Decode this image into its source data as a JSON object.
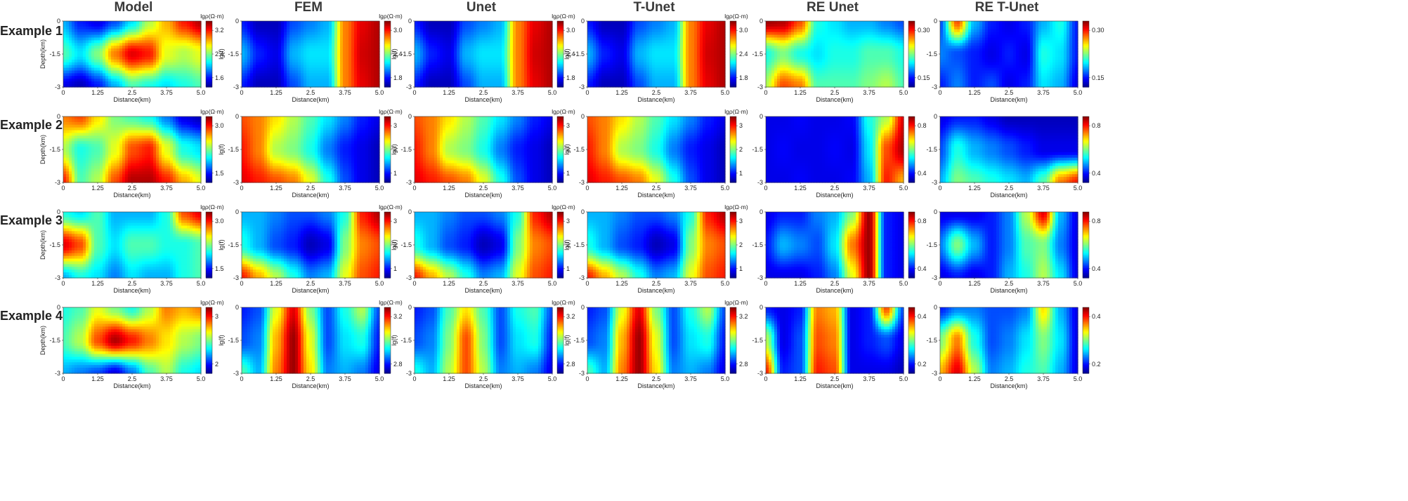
{
  "columns": [
    "Model",
    "FEM",
    "Unet",
    "T-Unet",
    "RE Unet",
    "RE T-Unet"
  ],
  "rows": [
    "Example 1",
    "Example 2",
    "Example 3",
    "Example 4"
  ],
  "x_ticks": [
    "0",
    "1.25",
    "2.5",
    "3.75",
    "5.0"
  ],
  "y_ticks": [
    "0",
    "-1.5",
    "-3"
  ],
  "x_label": "Distance(km)",
  "y_label_model": "Depth(km)",
  "y_label_freq": "lg(f)",
  "colorbar_unit": "lgρ(Ω·m)",
  "colorbar_ticks": {
    "Example 1": {
      "Model": [
        "3.2",
        "2.4",
        "1.6"
      ],
      "FEM": [
        "3.0",
        "2.4",
        "1.8"
      ],
      "Unet": [
        "3.0",
        "2.4",
        "1.8"
      ],
      "T-Unet": [
        "3.0",
        "2.4",
        "1.8"
      ],
      "RE Unet": [
        "0.30",
        "0.15"
      ],
      "RE T-Unet": [
        "0.30",
        "0.15"
      ]
    },
    "Example 2": {
      "Model": [
        "3.0",
        "1.5"
      ],
      "FEM": [
        "3",
        "2",
        "1"
      ],
      "Unet": [
        "3",
        "2",
        "1"
      ],
      "T-Unet": [
        "3",
        "2",
        "1"
      ],
      "RE Unet": [
        "0.8",
        "0.4"
      ],
      "RE T-Unet": [
        "0.8",
        "0.4"
      ]
    },
    "Example 3": {
      "Model": [
        "3.0",
        "1.5"
      ],
      "FEM": [
        "3",
        "2",
        "1"
      ],
      "Unet": [
        "3",
        "2",
        "1"
      ],
      "T-Unet": [
        "3",
        "2",
        "1"
      ],
      "RE Unet": [
        "0.8",
        "0.4"
      ],
      "RE T-Unet": [
        "0.8",
        "0.4"
      ]
    },
    "Example 4": {
      "Model": [
        "3",
        "2"
      ],
      "FEM": [
        "3.2",
        "2.8"
      ],
      "Unet": [
        "3.2",
        "2.8"
      ],
      "T-Unet": [
        "3.2",
        "2.8"
      ],
      "RE Unet": [
        "0.4",
        "0.2"
      ],
      "RE T-Unet": [
        "0.4",
        "0.2"
      ]
    }
  },
  "colorbar_unit_shown": {
    "Example 1": [
      "Model",
      "FEM",
      "Unet",
      "T-Unet"
    ],
    "Example 2": [
      "Model",
      "FEM",
      "Unet",
      "T-Unet"
    ],
    "Example 3": [
      "Model",
      "FEM",
      "Unet",
      "T-Unet"
    ],
    "Example 4": [
      "Model",
      "FEM",
      "Unet",
      "T-Unet"
    ]
  },
  "colormap": [
    "#00008f",
    "#0000ff",
    "#0080ff",
    "#00ffff",
    "#80ff80",
    "#ffff00",
    "#ff8000",
    "#ff0000",
    "#800000"
  ],
  "fields": {
    "Example 1": {
      "Model": [
        [
          0.3,
          0.15,
          0.1,
          0.2,
          0.35,
          0.55,
          0.7,
          0.85,
          0.95
        ],
        [
          0.45,
          0.35,
          0.5,
          0.75,
          0.9,
          0.85,
          0.6,
          0.55,
          0.6
        ],
        [
          0.1,
          0.05,
          0.15,
          0.3,
          0.45,
          0.4,
          0.35,
          0.4,
          0.45
        ]
      ],
      "FEM": [
        [
          0.15,
          0.05,
          0.05,
          0.2,
          0.25,
          0.3,
          0.75,
          0.9,
          0.95
        ],
        [
          0.3,
          0.15,
          0.1,
          0.3,
          0.35,
          0.35,
          0.75,
          0.92,
          0.95
        ],
        [
          0.15,
          0.05,
          0.05,
          0.2,
          0.3,
          0.3,
          0.75,
          0.9,
          0.95
        ]
      ],
      "Unet": [
        [
          0.15,
          0.05,
          0.05,
          0.2,
          0.25,
          0.3,
          0.75,
          0.9,
          0.95
        ],
        [
          0.3,
          0.15,
          0.1,
          0.3,
          0.35,
          0.35,
          0.75,
          0.92,
          0.95
        ],
        [
          0.15,
          0.05,
          0.05,
          0.2,
          0.3,
          0.3,
          0.75,
          0.9,
          0.95
        ]
      ],
      "T-Unet": [
        [
          0.15,
          0.05,
          0.05,
          0.2,
          0.25,
          0.3,
          0.75,
          0.9,
          0.95
        ],
        [
          0.3,
          0.15,
          0.1,
          0.3,
          0.35,
          0.35,
          0.75,
          0.92,
          0.95
        ],
        [
          0.15,
          0.05,
          0.05,
          0.2,
          0.3,
          0.3,
          0.75,
          0.9,
          0.95
        ]
      ],
      "RE Unet": [
        [
          0.97,
          0.95,
          0.8,
          0.4,
          0.35,
          0.3,
          0.3,
          0.25,
          0.2
        ],
        [
          0.4,
          0.5,
          0.4,
          0.35,
          0.4,
          0.4,
          0.45,
          0.45,
          0.4
        ],
        [
          0.55,
          0.8,
          0.75,
          0.45,
          0.45,
          0.45,
          0.5,
          0.55,
          0.45
        ]
      ],
      "RE T-Unet": [
        [
          0.2,
          0.8,
          0.3,
          0.15,
          0.1,
          0.15,
          0.3,
          0.4,
          0.15
        ],
        [
          0.25,
          0.2,
          0.15,
          0.1,
          0.15,
          0.1,
          0.4,
          0.35,
          0.15
        ],
        [
          0.15,
          0.25,
          0.15,
          0.2,
          0.1,
          0.15,
          0.35,
          0.3,
          0.1
        ]
      ]
    },
    "Example 2": {
      "Model": [
        [
          0.75,
          0.8,
          0.65,
          0.5,
          0.45,
          0.4,
          0.25,
          0.1,
          0.05
        ],
        [
          0.55,
          0.4,
          0.45,
          0.6,
          0.8,
          0.85,
          0.6,
          0.4,
          0.35
        ],
        [
          0.85,
          0.45,
          0.55,
          0.8,
          0.95,
          0.95,
          0.85,
          0.7,
          0.6
        ]
      ],
      "FEM": [
        [
          0.8,
          0.75,
          0.65,
          0.55,
          0.45,
          0.35,
          0.25,
          0.15,
          0.1
        ],
        [
          0.85,
          0.75,
          0.55,
          0.5,
          0.4,
          0.25,
          0.15,
          0.1,
          0.05
        ],
        [
          0.9,
          0.85,
          0.8,
          0.75,
          0.6,
          0.4,
          0.2,
          0.1,
          0.05
        ]
      ],
      "Unet": [
        [
          0.8,
          0.75,
          0.65,
          0.55,
          0.45,
          0.35,
          0.25,
          0.15,
          0.1
        ],
        [
          0.85,
          0.75,
          0.55,
          0.5,
          0.4,
          0.25,
          0.15,
          0.1,
          0.05
        ],
        [
          0.9,
          0.85,
          0.8,
          0.75,
          0.6,
          0.4,
          0.2,
          0.1,
          0.05
        ]
      ],
      "T-Unet": [
        [
          0.8,
          0.75,
          0.65,
          0.55,
          0.45,
          0.35,
          0.25,
          0.15,
          0.1
        ],
        [
          0.85,
          0.75,
          0.55,
          0.5,
          0.4,
          0.25,
          0.15,
          0.1,
          0.05
        ],
        [
          0.9,
          0.85,
          0.8,
          0.75,
          0.6,
          0.4,
          0.2,
          0.1,
          0.05
        ]
      ],
      "RE Unet": [
        [
          0.1,
          0.1,
          0.12,
          0.1,
          0.1,
          0.12,
          0.4,
          0.55,
          0.9
        ],
        [
          0.1,
          0.12,
          0.1,
          0.1,
          0.12,
          0.1,
          0.35,
          0.8,
          0.95
        ],
        [
          0.1,
          0.1,
          0.12,
          0.1,
          0.1,
          0.12,
          0.3,
          0.85,
          0.7
        ]
      ],
      "RE T-Unet": [
        [
          0.1,
          0.15,
          0.15,
          0.1,
          0.05,
          0.05,
          0.05,
          0.05,
          0.05
        ],
        [
          0.2,
          0.4,
          0.3,
          0.25,
          0.2,
          0.15,
          0.1,
          0.1,
          0.1
        ],
        [
          0.3,
          0.5,
          0.45,
          0.4,
          0.35,
          0.3,
          0.45,
          0.75,
          0.85
        ]
      ]
    },
    "Example 3": {
      "Model": [
        [
          0.4,
          0.35,
          0.45,
          0.3,
          0.3,
          0.3,
          0.4,
          0.8,
          0.9
        ],
        [
          0.9,
          0.8,
          0.45,
          0.35,
          0.45,
          0.45,
          0.4,
          0.4,
          0.45
        ],
        [
          0.3,
          0.4,
          0.35,
          0.25,
          0.35,
          0.3,
          0.3,
          0.4,
          0.45
        ]
      ],
      "FEM": [
        [
          0.3,
          0.3,
          0.25,
          0.2,
          0.2,
          0.25,
          0.4,
          0.85,
          0.95
        ],
        [
          0.4,
          0.3,
          0.2,
          0.15,
          0.05,
          0.1,
          0.5,
          0.75,
          0.8
        ],
        [
          0.85,
          0.7,
          0.55,
          0.4,
          0.25,
          0.3,
          0.6,
          0.8,
          0.85
        ]
      ],
      "Unet": [
        [
          0.3,
          0.3,
          0.25,
          0.2,
          0.2,
          0.25,
          0.4,
          0.85,
          0.95
        ],
        [
          0.4,
          0.3,
          0.2,
          0.15,
          0.05,
          0.1,
          0.5,
          0.75,
          0.8
        ],
        [
          0.85,
          0.7,
          0.55,
          0.4,
          0.25,
          0.3,
          0.6,
          0.8,
          0.85
        ]
      ],
      "T-Unet": [
        [
          0.3,
          0.3,
          0.25,
          0.2,
          0.2,
          0.25,
          0.4,
          0.85,
          0.95
        ],
        [
          0.4,
          0.3,
          0.2,
          0.15,
          0.05,
          0.1,
          0.5,
          0.75,
          0.8
        ],
        [
          0.85,
          0.7,
          0.55,
          0.4,
          0.25,
          0.3,
          0.6,
          0.8,
          0.85
        ]
      ],
      "RE Unet": [
        [
          0.1,
          0.15,
          0.15,
          0.25,
          0.3,
          0.5,
          0.97,
          0.15,
          0.1
        ],
        [
          0.15,
          0.3,
          0.25,
          0.2,
          0.35,
          0.75,
          0.97,
          0.15,
          0.1
        ],
        [
          0.1,
          0.1,
          0.1,
          0.15,
          0.25,
          0.6,
          0.97,
          0.15,
          0.1
        ]
      ],
      "RE T-Unet": [
        [
          0.1,
          0.1,
          0.1,
          0.15,
          0.25,
          0.55,
          0.9,
          0.3,
          0.1
        ],
        [
          0.25,
          0.5,
          0.3,
          0.15,
          0.25,
          0.45,
          0.5,
          0.25,
          0.1
        ],
        [
          0.1,
          0.15,
          0.1,
          0.15,
          0.3,
          0.4,
          0.55,
          0.35,
          0.1
        ]
      ]
    },
    "Example 4": {
      "Model": [
        [
          0.4,
          0.45,
          0.6,
          0.5,
          0.4,
          0.55,
          0.75,
          0.7,
          0.75
        ],
        [
          0.45,
          0.55,
          0.8,
          0.95,
          0.85,
          0.75,
          0.65,
          0.55,
          0.5
        ],
        [
          0.3,
          0.25,
          0.2,
          0.1,
          0.25,
          0.45,
          0.55,
          0.4,
          0.35
        ]
      ],
      "FEM": [
        [
          0.15,
          0.2,
          0.6,
          0.9,
          0.5,
          0.2,
          0.4,
          0.55,
          0.2
        ],
        [
          0.2,
          0.25,
          0.7,
          0.97,
          0.6,
          0.2,
          0.35,
          0.4,
          0.15
        ],
        [
          0.45,
          0.3,
          0.75,
          0.97,
          0.65,
          0.25,
          0.3,
          0.25,
          0.1
        ]
      ],
      "Unet": [
        [
          0.15,
          0.2,
          0.45,
          0.65,
          0.45,
          0.2,
          0.4,
          0.45,
          0.2
        ],
        [
          0.2,
          0.25,
          0.5,
          0.8,
          0.5,
          0.2,
          0.35,
          0.4,
          0.15
        ],
        [
          0.4,
          0.3,
          0.55,
          0.8,
          0.55,
          0.25,
          0.3,
          0.25,
          0.1
        ]
      ],
      "T-Unet": [
        [
          0.15,
          0.2,
          0.6,
          0.9,
          0.5,
          0.2,
          0.4,
          0.55,
          0.2
        ],
        [
          0.2,
          0.25,
          0.7,
          0.97,
          0.6,
          0.2,
          0.35,
          0.4,
          0.15
        ],
        [
          0.45,
          0.3,
          0.75,
          0.97,
          0.65,
          0.25,
          0.3,
          0.25,
          0.1
        ]
      ],
      "RE Unet": [
        [
          0.15,
          0.1,
          0.15,
          0.75,
          0.7,
          0.1,
          0.15,
          0.8,
          0.2
        ],
        [
          0.55,
          0.1,
          0.2,
          0.8,
          0.75,
          0.1,
          0.15,
          0.2,
          0.1
        ],
        [
          0.85,
          0.15,
          0.2,
          0.85,
          0.8,
          0.1,
          0.1,
          0.1,
          0.05
        ]
      ],
      "RE T-Unet": [
        [
          0.15,
          0.25,
          0.25,
          0.2,
          0.2,
          0.25,
          0.65,
          0.3,
          0.1
        ],
        [
          0.5,
          0.75,
          0.4,
          0.2,
          0.25,
          0.35,
          0.5,
          0.35,
          0.1
        ],
        [
          0.7,
          0.9,
          0.55,
          0.25,
          0.3,
          0.4,
          0.45,
          0.3,
          0.1
        ]
      ]
    }
  }
}
